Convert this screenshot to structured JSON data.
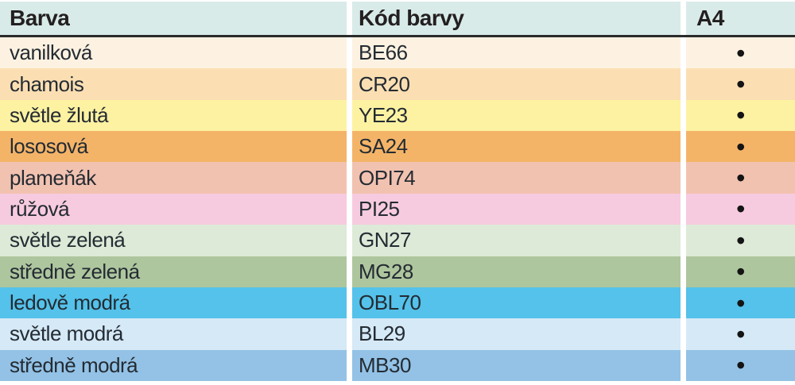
{
  "table": {
    "header": {
      "bg_color": "#d9ebe8",
      "barva_label": "Barva",
      "kod_label": "Kód barvy",
      "a4_label": "A4"
    },
    "style": {
      "rule_color": "#2b2b2b",
      "separator_color": "#ffffff",
      "header_text_color": "#231f20",
      "row_text_color": "#242b33"
    },
    "a4_marker_glyph": "•",
    "rows": [
      {
        "name": "vanilková",
        "code": "BE66",
        "a4": "•",
        "color": "#fdf2e1"
      },
      {
        "name": "chamois",
        "code": "CR20",
        "a4": "•",
        "color": "#fbdfb3"
      },
      {
        "name": "světle žlutá",
        "code": "YE23",
        "a4": "•",
        "color": "#fdf2a2"
      },
      {
        "name": "lososová",
        "code": "SA24",
        "a4": "•",
        "color": "#f4b468"
      },
      {
        "name": "plameňák",
        "code": "OPI74",
        "a4": "•",
        "color": "#f2c2b0"
      },
      {
        "name": "růžová",
        "code": "PI25",
        "a4": "•",
        "color": "#f7cbdf"
      },
      {
        "name": "světle zelená",
        "code": "GN27",
        "a4": "•",
        "color": "#dcead7"
      },
      {
        "name": "středně zelená",
        "code": "MG28",
        "a4": "•",
        "color": "#aec69e"
      },
      {
        "name": "ledově modrá",
        "code": "OBL70",
        "a4": "•",
        "color": "#54c2ea"
      },
      {
        "name": "světle modrá",
        "code": "BL29",
        "a4": "•",
        "color": "#d5e9f7"
      },
      {
        "name": "středně modrá",
        "code": "MB30",
        "a4": "•",
        "color": "#93c2e6"
      }
    ]
  }
}
